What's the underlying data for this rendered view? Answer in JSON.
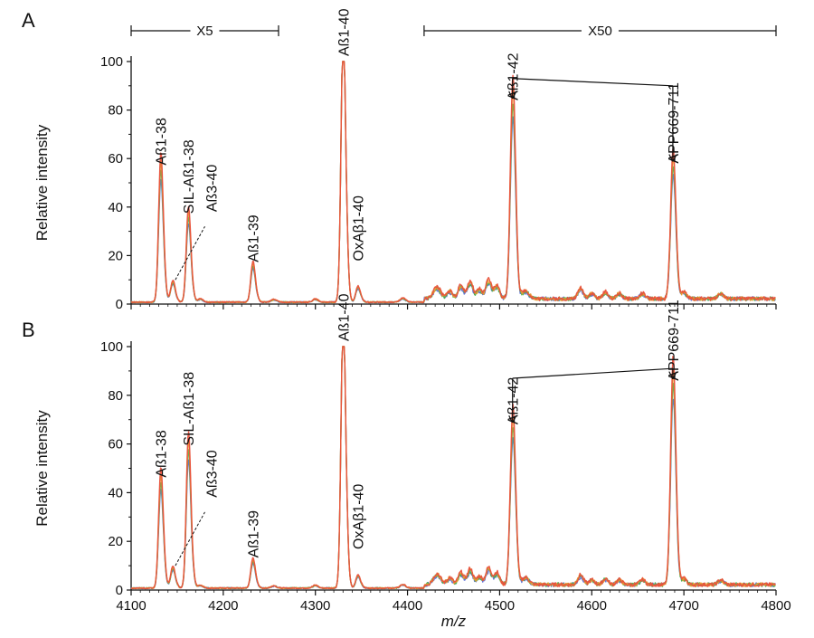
{
  "figure": {
    "panels": [
      {
        "id": "A",
        "label": "A"
      },
      {
        "id": "B",
        "label": "B"
      }
    ],
    "scale_markers": [
      {
        "label": "X5",
        "x_start": 4100,
        "x_end": 4260
      },
      {
        "label": "X50",
        "x_start": 4418,
        "x_end": 4800
      }
    ],
    "series_colors": [
      "#5b6fd6",
      "#4caf50",
      "#e89a2c",
      "#e8513d"
    ]
  },
  "chart_data": [
    {
      "panel": "A",
      "type": "line",
      "title": "",
      "xlabel": "",
      "ylabel": "Relative intensity",
      "xlim": [
        4100,
        4800
      ],
      "ylim": [
        0,
        100
      ],
      "xticks": [
        4100,
        4200,
        4300,
        4400,
        4500,
        4600,
        4700,
        4800
      ],
      "yticks": [
        0,
        20,
        40,
        60,
        80,
        100
      ],
      "peaks": [
        {
          "label": "Aß1-38",
          "mz": 4132,
          "intensity": 55
        },
        {
          "label": "Aß3-40",
          "mz": 4145,
          "intensity": 8
        },
        {
          "label": "SIL-Aß1-38",
          "mz": 4162,
          "intensity": 35
        },
        {
          "label": "Aß1-39",
          "mz": 4232,
          "intensity": 15
        },
        {
          "label": "Aß1-40",
          "mz": 4330,
          "intensity": 100
        },
        {
          "label": "OxAβ1-40",
          "mz": 4346,
          "intensity": 6
        },
        {
          "label": "Aß1-42",
          "mz": 4514,
          "intensity": 81
        },
        {
          "label": "APP669-711",
          "mz": 4688,
          "intensity": 55
        }
      ]
    },
    {
      "panel": "B",
      "type": "line",
      "title": "",
      "xlabel": "m/z",
      "ylabel": "Relative intensity",
      "xlim": [
        4100,
        4800
      ],
      "ylim": [
        0,
        100
      ],
      "xticks": [
        4100,
        4200,
        4300,
        4400,
        4500,
        4600,
        4700,
        4800
      ],
      "yticks": [
        0,
        20,
        40,
        60,
        80,
        100
      ],
      "peaks": [
        {
          "label": "Aß1-38",
          "mz": 4132,
          "intensity": 44
        },
        {
          "label": "Aß3-40",
          "mz": 4145,
          "intensity": 8
        },
        {
          "label": "SIL-Aß1-38",
          "mz": 4162,
          "intensity": 57
        },
        {
          "label": "Aß1-39",
          "mz": 4232,
          "intensity": 11
        },
        {
          "label": "Aß1-40",
          "mz": 4330,
          "intensity": 100
        },
        {
          "label": "OxAβ1-40",
          "mz": 4346,
          "intensity": 5
        },
        {
          "label": "Aß1-42",
          "mz": 4514,
          "intensity": 65
        },
        {
          "label": "APP669-711",
          "mz": 4688,
          "intensity": 83
        }
      ]
    }
  ]
}
